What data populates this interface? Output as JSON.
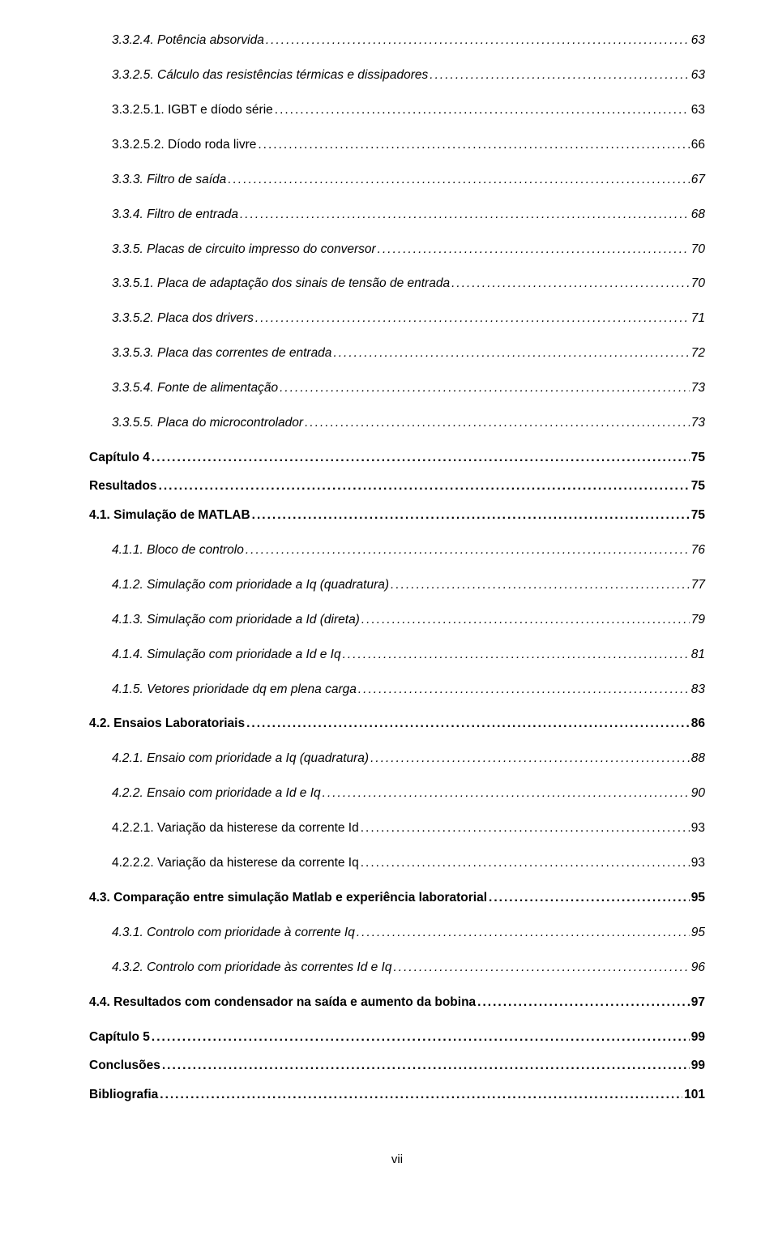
{
  "toc": [
    {
      "label": "3.3.2.4. Potência absorvida",
      "page": "63",
      "style": "italic",
      "indent": 1,
      "gap": false
    },
    {
      "label": "3.3.2.5. Cálculo das resistências térmicas e dissipadores",
      "page": "63",
      "style": "italic",
      "indent": 1,
      "gap": true
    },
    {
      "label": "3.3.2.5.1. IGBT e díodo série",
      "page": "63",
      "style": "normal",
      "indent": 2,
      "gap": true
    },
    {
      "label": "3.3.2.5.2. Díodo roda livre",
      "page": "66",
      "style": "normal",
      "indent": 2,
      "gap": true
    },
    {
      "label": "3.3.3. Filtro de saída",
      "page": "67",
      "style": "italic",
      "indent": 1,
      "gap": true
    },
    {
      "label": "3.3.4. Filtro de entrada",
      "page": "68",
      "style": "italic",
      "indent": 1,
      "gap": true
    },
    {
      "label": "3.3.5. Placas de circuito impresso do conversor",
      "page": "70",
      "style": "italic",
      "indent": 1,
      "gap": true
    },
    {
      "label": "3.3.5.1. Placa de adaptação dos sinais de tensão de entrada",
      "page": "70",
      "style": "italic",
      "indent": 1,
      "gap": true
    },
    {
      "label": "3.3.5.2. Placa dos drivers",
      "page": "71",
      "style": "italic",
      "indent": 1,
      "gap": true
    },
    {
      "label": "3.3.5.3. Placa das correntes de entrada",
      "page": "72",
      "style": "italic",
      "indent": 1,
      "gap": true
    },
    {
      "label": "3.3.5.4. Fonte de alimentação",
      "page": "73",
      "style": "italic",
      "indent": 1,
      "gap": true
    },
    {
      "label": "3.3.5.5. Placa do microcontrolador",
      "page": "73",
      "style": "italic",
      "indent": 1,
      "gap": true
    },
    {
      "label": "Capítulo 4",
      "page": "75",
      "style": "bold",
      "indent": 0,
      "gap": true
    },
    {
      "label": "Resultados",
      "page": "75",
      "style": "bold",
      "indent": 0,
      "gap": false
    },
    {
      "label": "4.1. Simulação de MATLAB",
      "page": "75",
      "style": "bold",
      "indent": 0,
      "gap": false
    },
    {
      "label": "4.1.1. Bloco de controlo",
      "page": "76",
      "style": "italic",
      "indent": 1,
      "gap": true
    },
    {
      "label": "4.1.2. Simulação com prioridade a Iq (quadratura)",
      "page": "77",
      "style": "italic",
      "indent": 1,
      "gap": true
    },
    {
      "label": "4.1.3. Simulação com prioridade a Id (direta)",
      "page": "79",
      "style": "italic",
      "indent": 1,
      "gap": true
    },
    {
      "label": "4.1.4. Simulação com prioridade a Id e Iq",
      "page": "81",
      "style": "italic",
      "indent": 1,
      "gap": true
    },
    {
      "label": "4.1.5. Vetores prioridade dq em plena carga",
      "page": "83",
      "style": "italic",
      "indent": 1,
      "gap": true
    },
    {
      "label": "4.2. Ensaios Laboratoriais",
      "page": "86",
      "style": "bold",
      "indent": 0,
      "gap": true
    },
    {
      "label": "4.2.1. Ensaio com prioridade a Iq (quadratura)",
      "page": "88",
      "style": "italic",
      "indent": 1,
      "gap": true
    },
    {
      "label": "4.2.2. Ensaio com prioridade a Id e Iq",
      "page": "90",
      "style": "italic",
      "indent": 1,
      "gap": true
    },
    {
      "label": "4.2.2.1. Variação da histerese da corrente Id",
      "page": "93",
      "style": "normal",
      "indent": 2,
      "gap": true
    },
    {
      "label": "4.2.2.2. Variação da histerese da corrente Iq",
      "page": "93",
      "style": "normal",
      "indent": 2,
      "gap": true
    },
    {
      "label": "4.3. Comparação entre simulação Matlab e experiência laboratorial",
      "page": "95",
      "style": "bold",
      "indent": 0,
      "gap": true
    },
    {
      "label": "4.3.1. Controlo com prioridade à corrente Iq",
      "page": "95",
      "style": "italic",
      "indent": 1,
      "gap": true
    },
    {
      "label": "4.3.2. Controlo com prioridade às correntes Id e Iq",
      "page": "96",
      "style": "italic",
      "indent": 1,
      "gap": true
    },
    {
      "label": "4.4. Resultados com condensador na saída e aumento da bobina",
      "page": "97",
      "style": "bold",
      "indent": 0,
      "gap": true
    },
    {
      "label": "Capítulo 5",
      "page": "99",
      "style": "bold",
      "indent": 0,
      "gap": true
    },
    {
      "label": "Conclusões",
      "page": "99",
      "style": "bold",
      "indent": 0,
      "gap": false
    },
    {
      "label": "Bibliografia",
      "page": "101",
      "style": "bold",
      "indent": 0,
      "gap": false
    }
  ],
  "footer_page": "vii"
}
